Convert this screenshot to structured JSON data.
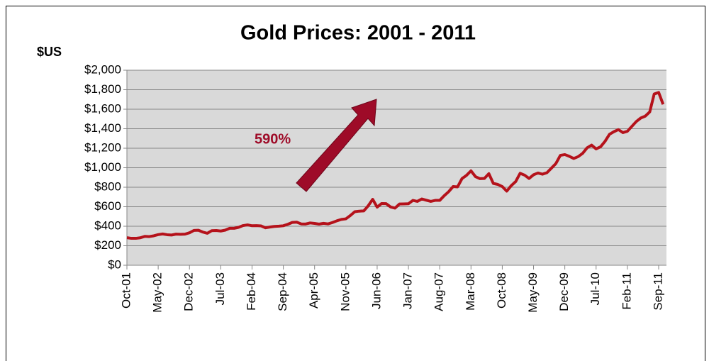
{
  "chart_data": {
    "type": "line",
    "title": "Gold Prices: 2001 - 2011",
    "y_label": "$US",
    "annotation": "590%",
    "categories": [
      "Oct-01",
      null,
      null,
      null,
      null,
      null,
      null,
      "May-02",
      null,
      null,
      null,
      null,
      null,
      null,
      "Dec-02",
      null,
      null,
      null,
      null,
      null,
      null,
      "Jul-03",
      null,
      null,
      null,
      null,
      null,
      null,
      "Feb-04",
      null,
      null,
      null,
      null,
      null,
      null,
      "Sep-04",
      null,
      null,
      null,
      null,
      null,
      null,
      "Apr-05",
      null,
      null,
      null,
      null,
      null,
      null,
      "Nov-05",
      null,
      null,
      null,
      null,
      null,
      null,
      "Jun-06",
      null,
      null,
      null,
      null,
      null,
      null,
      "Jan-07",
      null,
      null,
      null,
      null,
      null,
      null,
      "Aug-07",
      null,
      null,
      null,
      null,
      null,
      null,
      "Mar-08",
      null,
      null,
      null,
      null,
      null,
      null,
      "Oct-08",
      null,
      null,
      null,
      null,
      null,
      null,
      "May-09",
      null,
      null,
      null,
      null,
      null,
      null,
      "Dec-09",
      null,
      null,
      null,
      null,
      null,
      null,
      "Jul-10",
      null,
      null,
      null,
      null,
      null,
      null,
      "Feb-11",
      null,
      null,
      null,
      null,
      null,
      null,
      "Sep-11",
      null
    ],
    "series": [
      {
        "name": "Gold",
        "color": "#b5121b",
        "values": [
          283,
          276,
          276,
          282,
          296,
          294,
          302,
          314,
          321,
          313,
          310,
          319,
          317,
          319,
          333,
          357,
          359,
          340,
          328,
          355,
          356,
          351,
          360,
          379,
          379,
          389,
          407,
          414,
          405,
          406,
          404,
          384,
          392,
          398,
          401,
          405,
          420,
          439,
          442,
          424,
          423,
          434,
          429,
          422,
          430,
          424,
          438,
          456,
          470,
          476,
          510,
          549,
          555,
          557,
          610,
          676,
          596,
          633,
          632,
          598,
          586,
          628,
          629,
          631,
          665,
          655,
          680,
          667,
          655,
          665,
          665,
          713,
          754,
          807,
          804,
          889,
          922,
          968,
          909,
          888,
          890,
          939,
          839,
          829,
          807,
          760,
          816,
          858,
          943,
          924,
          890,
          928,
          946,
          934,
          949,
          996,
          1043,
          1127,
          1135,
          1117,
          1095,
          1114,
          1148,
          1205,
          1232,
          1193,
          1215,
          1271,
          1343,
          1370,
          1391,
          1360,
          1374,
          1424,
          1474,
          1510,
          1529,
          1572,
          1756,
          1772,
          1650
        ]
      }
    ],
    "ylim": [
      0,
      2000
    ],
    "yticks": [
      {
        "value": 0,
        "label": "$0"
      },
      {
        "value": 200,
        "label": "$200"
      },
      {
        "value": 400,
        "label": "$400"
      },
      {
        "value": 600,
        "label": "$600"
      },
      {
        "value": 800,
        "label": "$800"
      },
      {
        "value": 1000,
        "label": "$1,000"
      },
      {
        "value": 1200,
        "label": "$1,200"
      },
      {
        "value": 1400,
        "label": "$1,400"
      },
      {
        "value": 1600,
        "label": "$1,600"
      },
      {
        "value": 1800,
        "label": "$1,800"
      },
      {
        "value": 2000,
        "label": "$2,000"
      }
    ],
    "grid": true
  }
}
